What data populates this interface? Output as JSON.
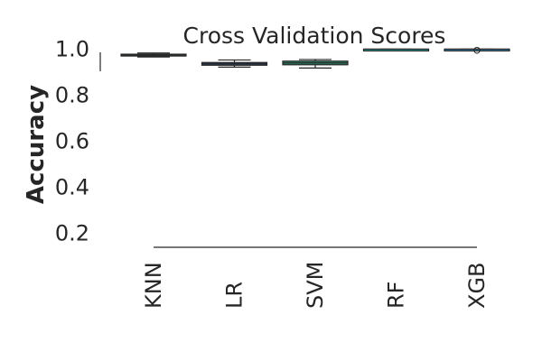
{
  "chart_data": {
    "type": "box",
    "title": "Cross Validation Scores",
    "xlabel": "",
    "ylabel": "Accuracy",
    "categories": [
      "KNN",
      "LR",
      "SVM",
      "RF",
      "XGB"
    ],
    "ylim": [
      0.14,
      1.08
    ],
    "yticks": [
      0.2,
      0.4,
      0.6,
      0.8,
      1.0
    ],
    "ytick_labels": [
      "0.2",
      "0.4",
      "0.6",
      "0.8",
      "1.0"
    ],
    "grid": false,
    "boxes": [
      {
        "name": "KNN",
        "whisker_low": 0.966,
        "q1": 0.97,
        "median": 0.975,
        "q3": 0.978,
        "whisker_high": 0.983,
        "outliers": [],
        "color": "#2f6d7c"
      },
      {
        "name": "LR",
        "whisker_low": 0.922,
        "q1": 0.93,
        "median": 0.936,
        "q3": 0.942,
        "whisker_high": 0.953,
        "outliers": [],
        "color": "#2f4b7c"
      },
      {
        "name": "SVM",
        "whisker_low": 0.918,
        "q1": 0.932,
        "median": 0.94,
        "q3": 0.948,
        "whisker_high": 0.955,
        "outliers": [],
        "color": "#2e8b6f"
      },
      {
        "name": "RF",
        "whisker_low": 0.998,
        "q1": 0.999,
        "median": 1.0,
        "q3": 1.0,
        "whisker_high": 1.0,
        "outliers": [],
        "color": "#2ca7a0"
      },
      {
        "name": "XGB",
        "whisker_low": 0.998,
        "q1": 0.999,
        "median": 1.0,
        "q3": 1.0,
        "whisker_high": 1.0,
        "outliers": [
          0.995
        ],
        "color": "#3a8bb8"
      }
    ]
  }
}
